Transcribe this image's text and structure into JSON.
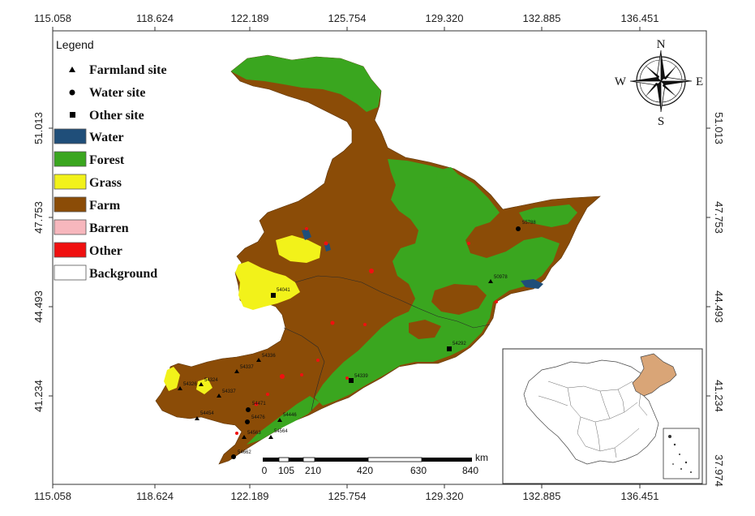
{
  "map": {
    "top_ticks": [
      "115.058",
      "118.624",
      "122.189",
      "125.754",
      "129.320",
      "132.885",
      "136.451"
    ],
    "bottom_ticks": [
      "115.058",
      "118.624",
      "122.189",
      "125.754",
      "129.320",
      "132.885",
      "136.451"
    ],
    "side_ticks": [
      "51.013",
      "47.753",
      "44.493",
      "41.234"
    ],
    "corner_label": "37.974"
  },
  "legend": {
    "title": "Legend",
    "sites": [
      {
        "label": "Farmland site",
        "symbol": "triangle"
      },
      {
        "label": "Water site",
        "symbol": "circle"
      },
      {
        "label": "Other site",
        "symbol": "square"
      }
    ],
    "classes": [
      {
        "label": "Water",
        "color": "#1f4e79"
      },
      {
        "label": "Forest",
        "color": "#3aa61f"
      },
      {
        "label": "Grass",
        "color": "#f2f21a"
      },
      {
        "label": "Farm",
        "color": "#8b4c07"
      },
      {
        "label": "Barren",
        "color": "#f7b7bd"
      },
      {
        "label": "Other",
        "color": "#f01010"
      },
      {
        "label": "Background",
        "color": "#ffffff"
      }
    ]
  },
  "compass": {
    "n": "N",
    "s": "S",
    "e": "E",
    "w": "W"
  },
  "scale_bar": {
    "unit": "km",
    "labels": [
      "0",
      "105",
      "210",
      "420",
      "630",
      "840"
    ]
  },
  "sites": [
    {
      "id": "55788",
      "symbol": "circle"
    },
    {
      "id": "50978",
      "symbol": "triangle"
    },
    {
      "id": "54041",
      "symbol": "square"
    },
    {
      "id": "54292",
      "symbol": "square"
    },
    {
      "id": "54336",
      "symbol": "triangle"
    },
    {
      "id": "54337",
      "symbol": "triangle"
    },
    {
      "id": "54339",
      "symbol": "square"
    },
    {
      "id": "54324",
      "symbol": "triangle"
    },
    {
      "id": "54337",
      "symbol": "triangle"
    },
    {
      "id": "54326",
      "symbol": "triangle"
    },
    {
      "id": "54454",
      "symbol": "triangle"
    },
    {
      "id": "54471",
      "symbol": "circle"
    },
    {
      "id": "54476",
      "symbol": "circle"
    },
    {
      "id": "54446",
      "symbol": "triangle"
    },
    {
      "id": "54563",
      "symbol": "triangle"
    },
    {
      "id": "54564",
      "symbol": "triangle"
    },
    {
      "id": "54662",
      "symbol": "circle"
    }
  ]
}
